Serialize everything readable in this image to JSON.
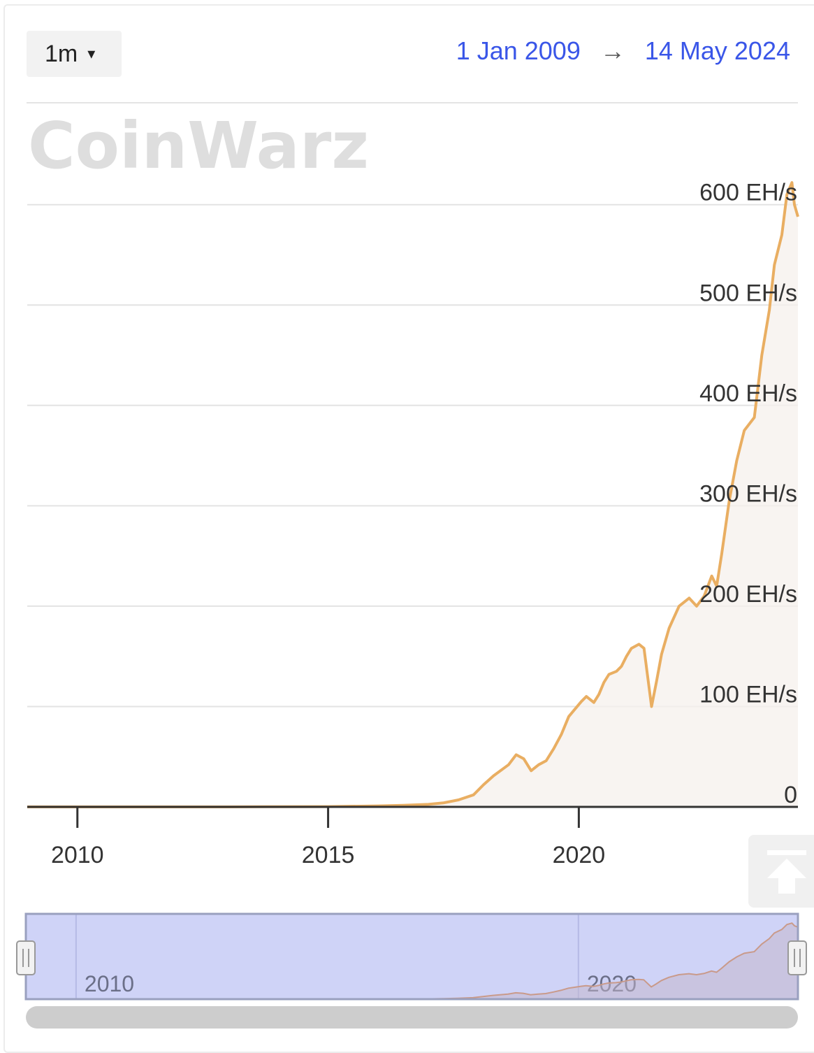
{
  "controls": {
    "interval_label": "1m",
    "caret": "▾",
    "date_from": "1 Jan 2009",
    "arrow": "→",
    "date_to": "14 May 2024"
  },
  "watermark": "CoinWarz",
  "icons": {
    "scroll_top": "arrow-up-icon",
    "dropdown": "caret-down-icon"
  },
  "colors": {
    "line": "#e9ae62",
    "area": "#f5f0ec",
    "navigator_mask": "#cfd3f7",
    "navigator_border": "#9aa0bf",
    "link": "#3a56e8"
  },
  "chart_data": {
    "type": "area",
    "title": "",
    "xlabel": "",
    "ylabel": "",
    "unit": "EH/s",
    "x_range": [
      2009.0,
      2024.37
    ],
    "ylim": [
      0,
      630
    ],
    "y_ticks": [
      {
        "value": 0,
        "label": "0"
      },
      {
        "value": 100,
        "label": "100 EH/s"
      },
      {
        "value": 200,
        "label": "200 EH/s"
      },
      {
        "value": 300,
        "label": "300 EH/s"
      },
      {
        "value": 400,
        "label": "400 EH/s"
      },
      {
        "value": 500,
        "label": "500 EH/s"
      },
      {
        "value": 600,
        "label": "600 EH/s"
      }
    ],
    "x_ticks": [
      {
        "value": 2010,
        "label": "2010"
      },
      {
        "value": 2015,
        "label": "2015"
      },
      {
        "value": 2020,
        "label": "2020"
      }
    ],
    "navigator_ticks": [
      {
        "value": 2010,
        "label": "2010"
      },
      {
        "value": 2020,
        "label": "2020"
      }
    ],
    "grid": true,
    "series": [
      {
        "x": [
          2009.0,
          2010.0,
          2011.0,
          2012.0,
          2013.0,
          2014.0,
          2015.0,
          2016.0,
          2016.5,
          2017.0,
          2017.3,
          2017.6,
          2017.9,
          2018.1,
          2018.3,
          2018.6,
          2018.75,
          2018.9,
          2019.05,
          2019.2,
          2019.35,
          2019.5,
          2019.65,
          2019.8,
          2019.9,
          2020.05,
          2020.15,
          2020.3,
          2020.4,
          2020.5,
          2020.6,
          2020.75,
          2020.85,
          2020.95,
          2021.05,
          2021.2,
          2021.3,
          2021.45,
          2021.55,
          2021.65,
          2021.8,
          2022.0,
          2022.2,
          2022.35,
          2022.5,
          2022.65,
          2022.75,
          2022.85,
          2023.0,
          2023.15,
          2023.3,
          2023.5,
          2023.65,
          2023.8,
          2023.9,
          2024.05,
          2024.15,
          2024.25,
          2024.3,
          2024.37
        ],
        "values": [
          0,
          0,
          0,
          0,
          0,
          0.2,
          0.3,
          1,
          1.5,
          2.5,
          4,
          7,
          12,
          22,
          31,
          42,
          52,
          48,
          36,
          42,
          46,
          58,
          72,
          90,
          96,
          105,
          110,
          104,
          112,
          124,
          132,
          135,
          140,
          150,
          158,
          162,
          158,
          100,
          125,
          152,
          178,
          200,
          208,
          200,
          210,
          230,
          220,
          252,
          305,
          345,
          375,
          388,
          450,
          495,
          540,
          570,
          610,
          622,
          600,
          588
        ]
      }
    ]
  }
}
